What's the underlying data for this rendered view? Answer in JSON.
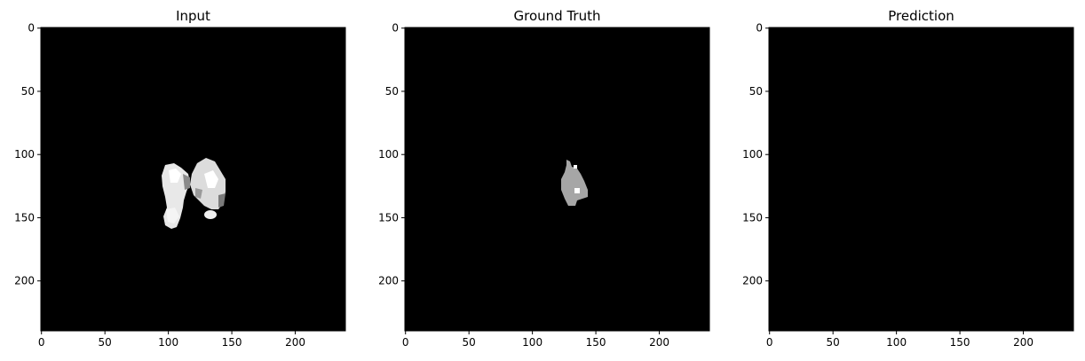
{
  "figure": {
    "background": "#ffffff",
    "panels": [
      {
        "id": "input",
        "title": "Input",
        "xticks": [
          "0",
          "50",
          "100",
          "150",
          "200"
        ],
        "yticks": [
          "0",
          "50",
          "100",
          "150",
          "200"
        ],
        "xtick_values": [
          0,
          50,
          100,
          150,
          200
        ],
        "ytick_values": [
          0,
          50,
          100,
          150,
          200
        ],
        "image_extent": 240,
        "content": "grayscale-blob"
      },
      {
        "id": "ground-truth",
        "title": "Ground Truth",
        "xticks": [
          "0",
          "50",
          "100",
          "150",
          "200"
        ],
        "yticks": [
          "0",
          "50",
          "100",
          "150",
          "200"
        ],
        "xtick_values": [
          0,
          50,
          100,
          150,
          200
        ],
        "ytick_values": [
          0,
          50,
          100,
          150,
          200
        ],
        "image_extent": 240,
        "content": "gray-mask"
      },
      {
        "id": "prediction",
        "title": "Prediction",
        "xticks": [
          "0",
          "50",
          "100",
          "150",
          "200"
        ],
        "yticks": [
          "0",
          "50",
          "100",
          "150",
          "200"
        ],
        "xtick_values": [
          0,
          50,
          100,
          150,
          200
        ],
        "ytick_values": [
          0,
          50,
          100,
          150,
          200
        ],
        "image_extent": 240,
        "content": "empty"
      }
    ]
  }
}
